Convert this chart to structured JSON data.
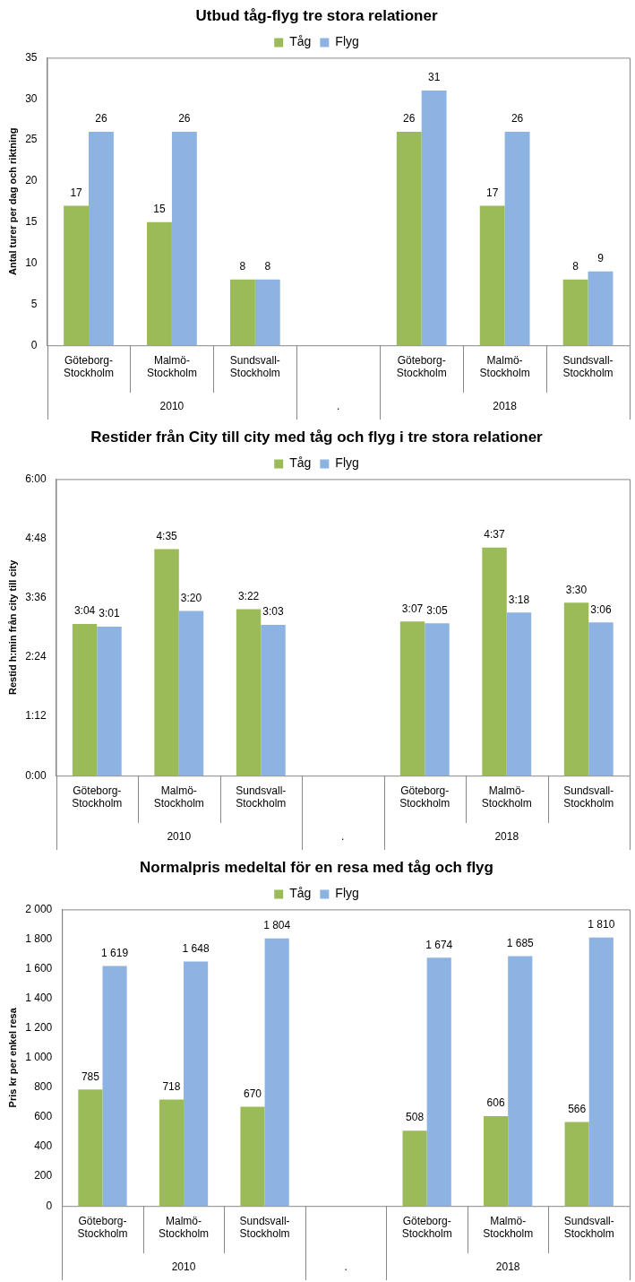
{
  "chart_data": [
    {
      "type": "bar",
      "title": "Utbud tåg-flyg tre stora relationer",
      "ylabel": "Antal turer per dag och riktning",
      "categories": [
        "Göteborg-Stockholm",
        "Malmö-Stockholm",
        "Sundsvall-Stockholm",
        null,
        "Göteborg-Stockholm",
        "Malmö-Stockholm",
        "Sundsvall-Stockholm"
      ],
      "series": [
        {
          "name": "Tåg",
          "color": "#9bbb59",
          "values": [
            17,
            15,
            8,
            null,
            26,
            17,
            8
          ]
        },
        {
          "name": "Flyg",
          "color": "#8db3e2",
          "values": [
            26,
            26,
            8,
            null,
            31,
            26,
            9
          ]
        }
      ],
      "ylim": [
        0,
        35
      ],
      "yticks": [
        0,
        5,
        10,
        15,
        20,
        25,
        30,
        35
      ],
      "grid": false,
      "legend": "top",
      "data_labels": true,
      "annotations": [
        "2010",
        ".",
        "2018"
      ]
    },
    {
      "type": "bar",
      "title": "Restider från City till city med tåg och flyg i tre stora relationer",
      "ylabel": "Restid h:min från city till city",
      "categories": [
        "Göteborg-Stockholm",
        "Malmö-Stockholm",
        "Sundsvall-Stockholm",
        null,
        "Göteborg-Stockholm",
        "Malmö-Stockholm",
        "Sundsvall-Stockholm"
      ],
      "series": [
        {
          "name": "Tåg",
          "color": "#9bbb59",
          "values": [
            3.0667,
            4.5833,
            3.3667,
            null,
            3.1167,
            4.6167,
            3.5
          ],
          "value_labels": [
            "3:04",
            "4:35",
            "3:22",
            null,
            "3:07",
            "4:37",
            "3:30"
          ]
        },
        {
          "name": "Flyg",
          "color": "#8db3e2",
          "values": [
            3.0167,
            3.3333,
            3.05,
            null,
            3.0833,
            3.3,
            3.1
          ],
          "value_labels": [
            "3:01",
            "3:20",
            "3:03",
            null,
            "3:05",
            "3:18",
            "3:06"
          ]
        }
      ],
      "ylim": [
        0,
        6
      ],
      "yticks": [
        {
          "value": 0,
          "label": "0:00"
        },
        {
          "value": 1.2,
          "label": "1:12"
        },
        {
          "value": 2.4,
          "label": "2:24"
        },
        {
          "value": 3.6,
          "label": "3:36"
        },
        {
          "value": 4.8,
          "label": "4:48"
        },
        {
          "value": 6,
          "label": "6:00"
        }
      ],
      "grid": false,
      "legend": "top",
      "annotations": [
        "2010",
        ".",
        "2018"
      ]
    },
    {
      "type": "bar",
      "title": "Normalpris medeltal för en resa med tåg och flyg",
      "ylabel": "Pris kr per enkel resa",
      "categories": [
        "Göteborg-Stockholm",
        "Malmö-Stockholm",
        "Sundsvall-Stockholm",
        null,
        "Göteborg-Stockholm",
        "Malmö-Stockholm",
        "Sundsvall-Stockholm"
      ],
      "series": [
        {
          "name": "Tåg",
          "color": "#9bbb59",
          "values": [
            785,
            718,
            670,
            null,
            508,
            606,
            566
          ],
          "value_labels": [
            "785",
            "718",
            "670",
            null,
            "508",
            "606",
            "566"
          ]
        },
        {
          "name": "Flyg",
          "color": "#8db3e2",
          "values": [
            1619,
            1648,
            1804,
            null,
            1674,
            1685,
            1810
          ],
          "value_labels": [
            "1 619",
            "1 648",
            "1 804",
            null,
            "1 674",
            "1 685",
            "1 810"
          ]
        }
      ],
      "ylim": [
        0,
        2000
      ],
      "yticks": [
        0,
        {
          "value": 200,
          "label": "200"
        },
        {
          "value": 400,
          "label": "400"
        },
        {
          "value": 600,
          "label": "600"
        },
        {
          "value": 800,
          "label": "800"
        },
        {
          "value": 1000,
          "label": "1 000"
        },
        {
          "value": 1200,
          "label": "1 200"
        },
        {
          "value": 1400,
          "label": "1 400"
        },
        {
          "value": 1600,
          "label": "1 600"
        },
        {
          "value": 1800,
          "label": "1 800"
        },
        {
          "value": 2000,
          "label": "2 000"
        }
      ],
      "grid": false,
      "legend": "top",
      "annotations": [
        "2010",
        ".",
        "2018"
      ]
    }
  ]
}
